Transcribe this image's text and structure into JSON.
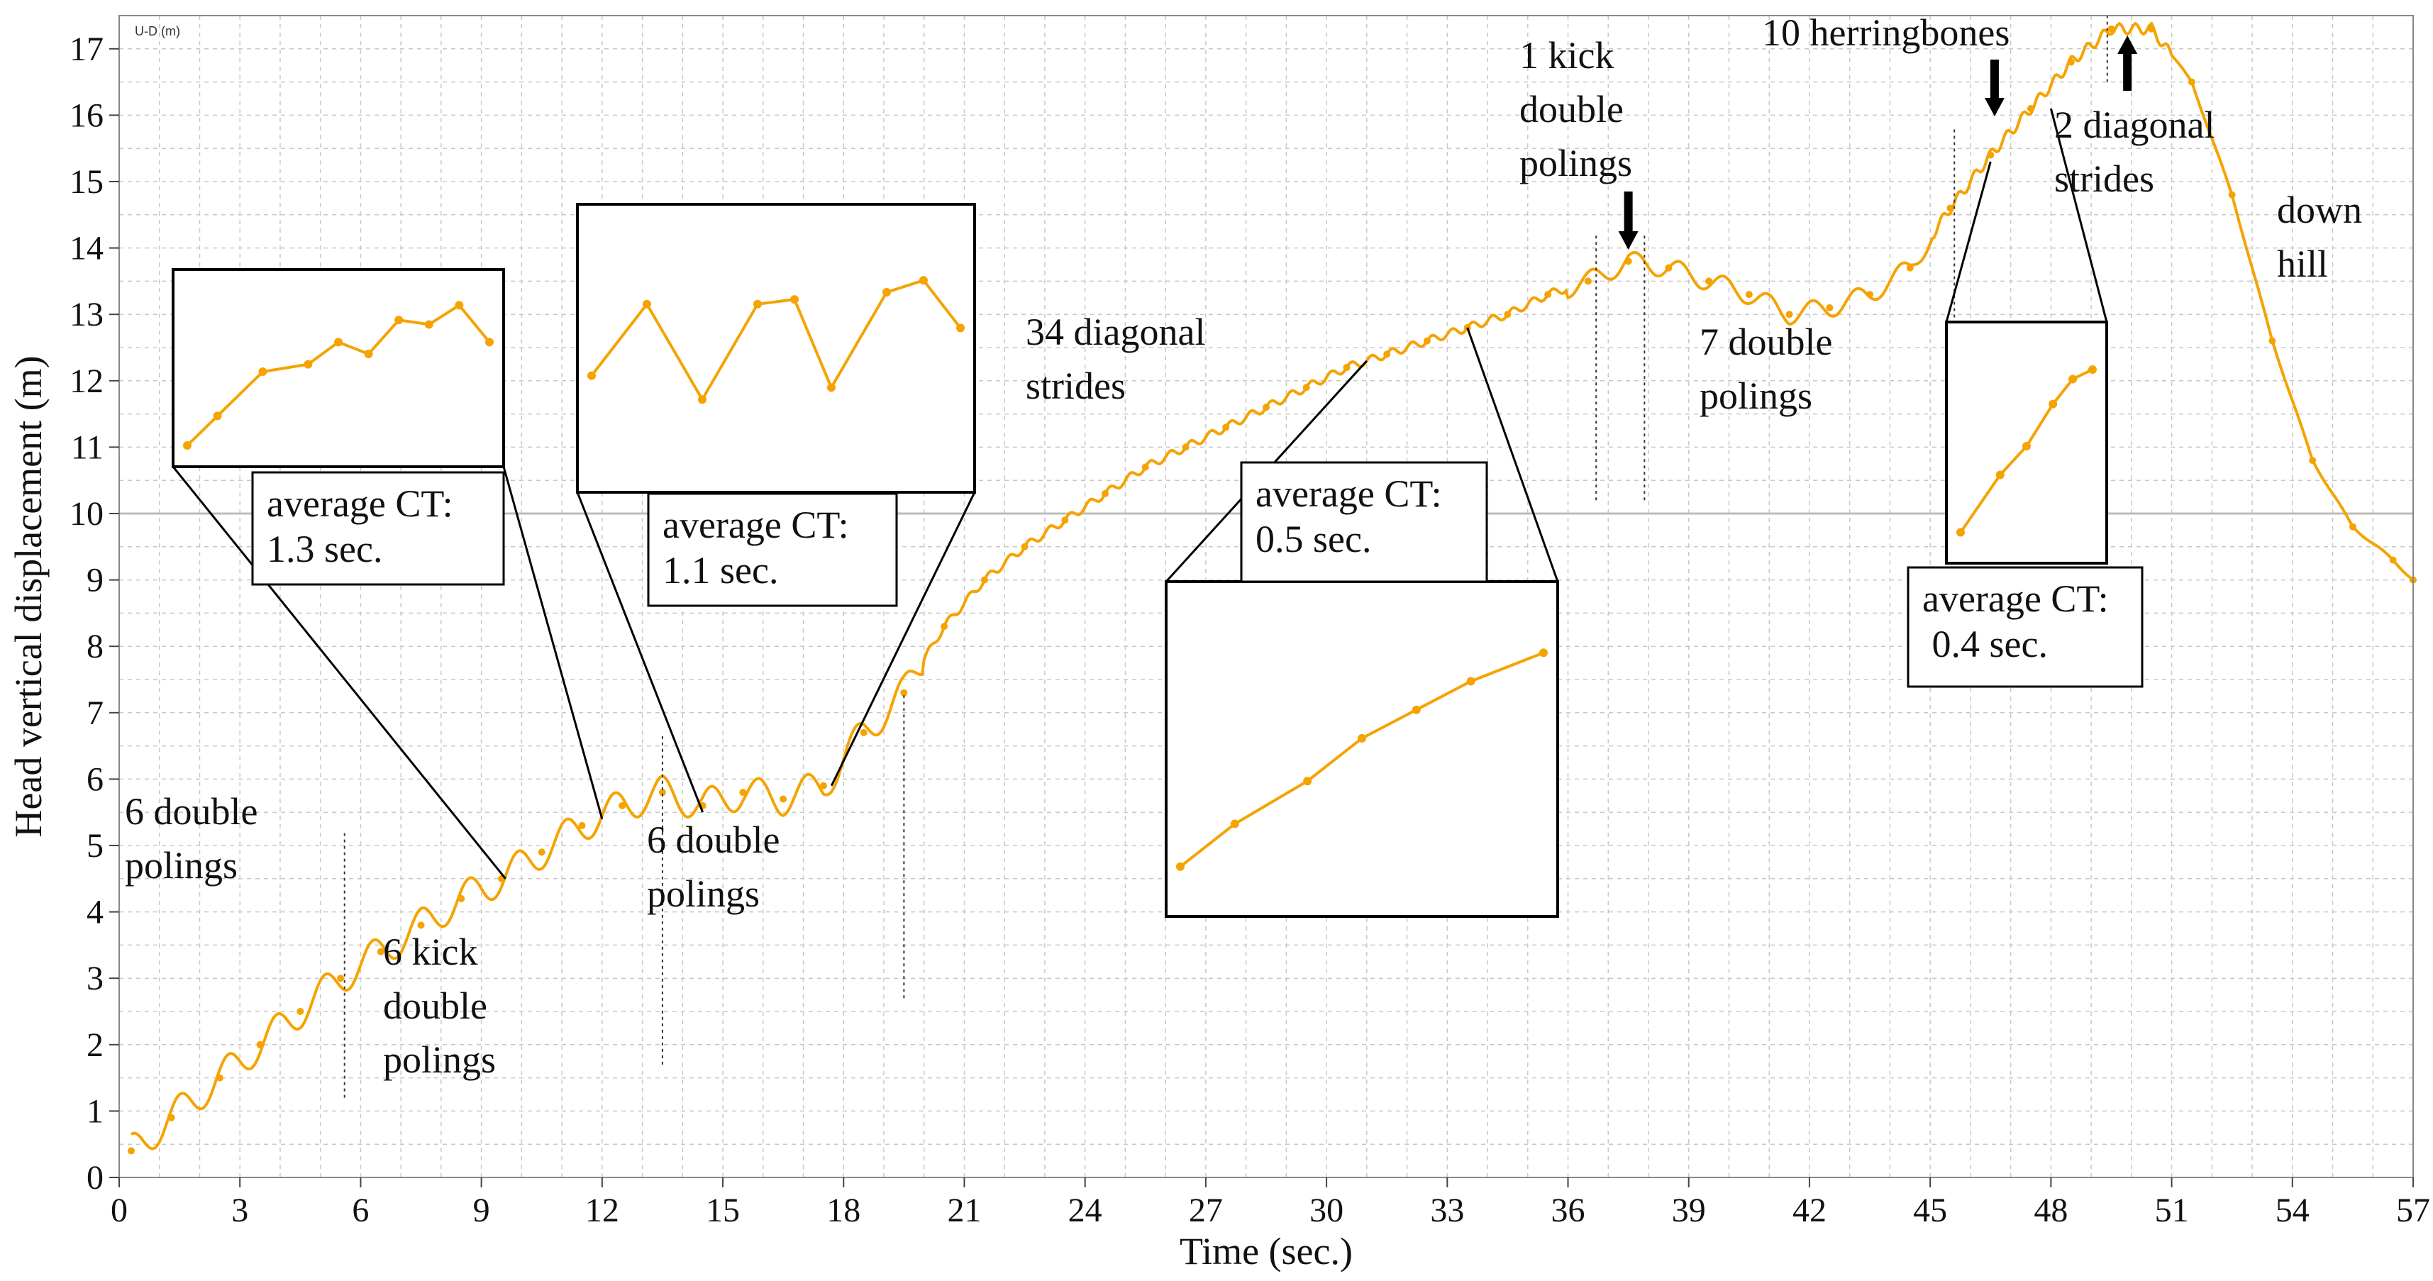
{
  "chart_data": {
    "type": "line",
    "xlabel": "Time (sec.)",
    "ylabel": "Head vertical displacement (m)",
    "corner_label": "U-D (m)",
    "xlim": [
      0,
      57
    ],
    "ylim": [
      0,
      17.5
    ],
    "xticks": [
      "0",
      "3",
      "6",
      "9",
      "12",
      "15",
      "18",
      "21",
      "24",
      "27",
      "30",
      "33",
      "36",
      "39",
      "42",
      "45",
      "48",
      "51",
      "54",
      "57"
    ],
    "yticks": [
      "0",
      "1",
      "2",
      "3",
      "4",
      "5",
      "6",
      "7",
      "8",
      "9",
      "10",
      "11",
      "12",
      "13",
      "14",
      "15",
      "16",
      "17"
    ],
    "grid": true,
    "series_color": "#f5a300",
    "series": [
      {
        "x": [
          0.3,
          1.3,
          2.5,
          3.5,
          4.5,
          5.5,
          6.5,
          7.5,
          8.5,
          9.5,
          10.5,
          11.5,
          12.5,
          13.5,
          14.5,
          15.5,
          16.5,
          17.5,
          18.5,
          19.5,
          20.5,
          21.5,
          22.5,
          23.5,
          24.5,
          25.5,
          26.5,
          27.5,
          28.5,
          29.5,
          30.5,
          31.5,
          32.5,
          33.5,
          34.5,
          35.5,
          36.5,
          37.5,
          38.5,
          39.5,
          40.5,
          41.5,
          42.5,
          43.5,
          44.5,
          45.5,
          46.5,
          47.5,
          48.5,
          49.5,
          50.5,
          51.5,
          52.5,
          53.5,
          54.5,
          55.5,
          56.5,
          57
        ],
        "y": [
          0.4,
          0.9,
          1.5,
          2.0,
          2.5,
          3.0,
          3.4,
          3.8,
          4.2,
          4.5,
          4.9,
          5.3,
          5.6,
          5.8,
          5.6,
          5.8,
          5.7,
          5.9,
          6.7,
          7.3,
          8.3,
          9.0,
          9.5,
          9.9,
          10.3,
          10.7,
          11.0,
          11.3,
          11.6,
          11.9,
          12.2,
          12.4,
          12.6,
          12.8,
          13.0,
          13.3,
          13.5,
          13.8,
          13.7,
          13.5,
          13.3,
          13.0,
          13.1,
          13.3,
          13.7,
          14.6,
          15.4,
          16.1,
          16.8,
          17.3,
          17.3,
          16.5,
          14.8,
          12.6,
          10.8,
          9.8,
          9.3,
          9.0
        ]
      }
    ],
    "annotations": {
      "a1": "6 double\npolings",
      "a2": "6 kick\ndouble\npolings",
      "a3": "6 double\npolings",
      "a4": "34 diagonal\nstrides",
      "a5": "1 kick\ndouble\npolings",
      "a6": "7 double\npolings",
      "a7": "10 herringbones",
      "a8": "2 diagonal\nstrides",
      "a9": "down\nhill"
    },
    "insets": [
      {
        "label": "average CT:\n1.3 sec."
      },
      {
        "label": "average CT:\n1.1 sec."
      },
      {
        "label": "average CT:\n0.5 sec."
      },
      {
        "label": "average CT:\n 0.4 sec."
      }
    ]
  }
}
